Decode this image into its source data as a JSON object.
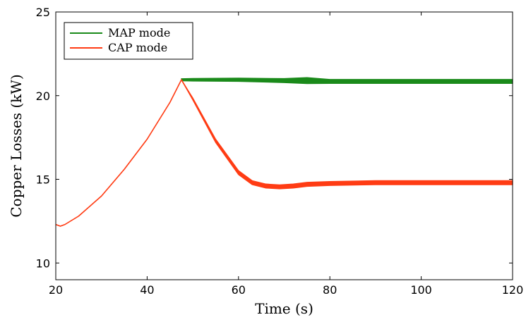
{
  "chart_data": {
    "type": "line",
    "title": "",
    "xlabel": "Time (s)",
    "ylabel": "Copper Losses (kW)",
    "xlim": [
      20,
      120
    ],
    "ylim": [
      9,
      25
    ],
    "xticks": [
      20,
      40,
      60,
      80,
      100,
      120
    ],
    "yticks": [
      10,
      15,
      20,
      25
    ],
    "grid": false,
    "legend_position": "top-left",
    "series": [
      {
        "name": "MAP mode",
        "color": "#1a8a1a",
        "x": [
          47.5,
          50,
          60,
          70,
          75,
          80,
          90,
          100,
          110,
          120
        ],
        "y": [
          20.95,
          20.95,
          20.95,
          20.9,
          20.9,
          20.85,
          20.85,
          20.85,
          20.85,
          20.85
        ],
        "oscillation": [
          0.06,
          0.08,
          0.1,
          0.12,
          0.18,
          0.12,
          0.12,
          0.12,
          0.12,
          0.12
        ]
      },
      {
        "name": "CAP mode",
        "color": "#ff3c14",
        "x": [
          20,
          21,
          22,
          25,
          30,
          35,
          40,
          45,
          47.5,
          50,
          55,
          60,
          63,
          66,
          69,
          72,
          75,
          80,
          90,
          100,
          110,
          120
        ],
        "y": [
          12.3,
          12.2,
          12.3,
          12.8,
          14.0,
          15.6,
          17.4,
          19.6,
          20.95,
          19.8,
          17.3,
          15.4,
          14.8,
          14.6,
          14.55,
          14.6,
          14.7,
          14.75,
          14.8,
          14.8,
          14.8,
          14.8
        ],
        "oscillation": [
          0,
          0,
          0,
          0,
          0,
          0,
          0,
          0,
          0,
          0.06,
          0.1,
          0.12,
          0.12,
          0.12,
          0.12,
          0.12,
          0.12,
          0.12,
          0.12,
          0.12,
          0.12,
          0.12
        ]
      }
    ]
  }
}
